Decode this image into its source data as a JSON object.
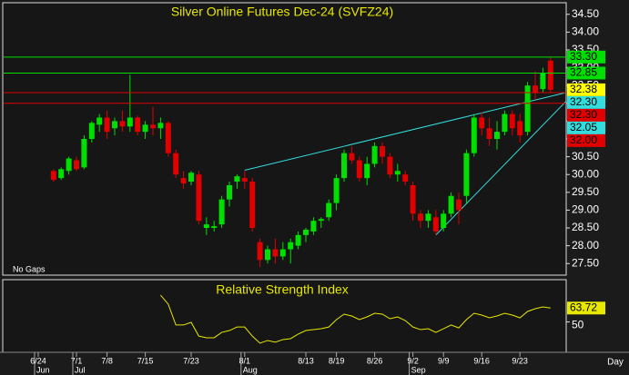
{
  "chart_data": [
    {
      "type": "candlestick",
      "title": "Silver Online Futures Dec-24 (SVFZ24)",
      "note": "No Gaps",
      "x_axis_unit": "Day",
      "categories": [
        "6/24",
        null,
        null,
        null,
        null,
        "7/1",
        null,
        null,
        null,
        "7/8",
        null,
        null,
        null,
        null,
        "7/15",
        null,
        null,
        null,
        null,
        null,
        "7/23",
        null,
        null,
        null,
        null,
        null,
        null,
        "8/1",
        null,
        null,
        null,
        null,
        null,
        null,
        null,
        "8/13",
        null,
        null,
        null,
        "8/19",
        null,
        null,
        null,
        null,
        "8/26",
        null,
        null,
        null,
        null,
        "9/2",
        null,
        null,
        null,
        "9/9",
        null,
        null,
        null,
        null,
        "9/16",
        null,
        null,
        null,
        null,
        "9/23",
        null,
        null,
        null,
        null
      ],
      "months": [
        "Jun",
        null,
        null,
        null,
        null,
        "Jul",
        null,
        null,
        null,
        null,
        null,
        null,
        null,
        null,
        null,
        null,
        null,
        null,
        null,
        null,
        null,
        null,
        null,
        null,
        null,
        null,
        null,
        "Aug",
        null,
        null,
        null,
        null,
        null,
        null,
        null,
        null,
        null,
        null,
        null,
        null,
        null,
        null,
        null,
        null,
        null,
        null,
        null,
        null,
        null,
        "Sep",
        null,
        null,
        null,
        null,
        null,
        null,
        null,
        null,
        null,
        null,
        null,
        null,
        null,
        null,
        null,
        null,
        null,
        null
      ],
      "open": [
        null,
        null,
        30.1,
        29.9,
        30.1,
        30.4,
        30.2,
        31.0,
        31.4,
        31.6,
        31.3,
        31.5,
        31.35,
        31.6,
        31.2,
        31.4,
        31.3,
        31.45,
        30.6,
        29.9,
        29.8,
        30.0,
        28.5,
        28.5,
        28.6,
        29.3,
        29.8,
        29.9,
        29.8,
        28.1,
        27.6,
        27.9,
        27.7,
        27.9,
        28.0,
        28.3,
        28.4,
        28.7,
        28.8,
        29.2,
        29.9,
        30.6,
        30.4,
        29.9,
        30.3,
        30.8,
        30.5,
        30.0,
        30.0,
        29.7,
        28.9,
        28.7,
        28.8,
        28.5,
        28.9,
        29.3,
        29.4,
        30.6,
        31.6,
        31.3,
        31.0,
        31.2,
        31.7,
        31.5,
        31.2,
        32.5,
        32.4,
        33.2
      ],
      "high": [
        null,
        null,
        30.15,
        30.2,
        30.5,
        30.5,
        31.1,
        31.5,
        31.7,
        31.8,
        31.6,
        31.8,
        32.8,
        31.65,
        31.5,
        31.9,
        31.6,
        31.5,
        30.7,
        30.1,
        30.1,
        30.1,
        28.8,
        28.7,
        29.4,
        29.8,
        30.0,
        30.1,
        29.9,
        28.2,
        28.0,
        28.2,
        28.1,
        28.2,
        28.4,
        28.5,
        28.8,
        28.8,
        29.3,
        30.0,
        30.7,
        30.8,
        30.5,
        30.5,
        30.9,
        30.9,
        30.6,
        30.3,
        30.1,
        29.8,
        29.0,
        29.0,
        29.0,
        29.0,
        29.5,
        29.5,
        30.7,
        31.7,
        31.75,
        31.6,
        31.5,
        31.8,
        31.8,
        31.7,
        32.6,
        32.9,
        33.0,
        33.3
      ],
      "low": [
        null,
        null,
        29.8,
        29.85,
        30.0,
        30.1,
        30.15,
        30.9,
        31.2,
        31.0,
        31.1,
        31.2,
        31.2,
        31.1,
        31.0,
        31.1,
        31.0,
        30.5,
        29.9,
        29.6,
        29.7,
        28.6,
        28.3,
        28.4,
        28.5,
        29.1,
        29.6,
        29.6,
        28.4,
        27.4,
        27.5,
        27.5,
        27.6,
        27.5,
        27.9,
        28.1,
        28.3,
        28.5,
        28.7,
        29.0,
        29.8,
        30.3,
        29.8,
        29.7,
        30.2,
        30.3,
        29.9,
        29.8,
        29.7,
        28.7,
        28.5,
        28.5,
        28.3,
        28.4,
        28.8,
        28.6,
        29.2,
        30.5,
        31.1,
        30.8,
        30.7,
        31.1,
        31.1,
        30.9,
        31.1,
        32.1,
        32.3,
        32.3
      ],
      "close": [
        null,
        null,
        29.85,
        30.15,
        30.45,
        30.15,
        31.0,
        31.45,
        31.6,
        31.2,
        31.5,
        31.35,
        31.6,
        31.2,
        31.4,
        31.3,
        31.45,
        30.6,
        30.0,
        29.75,
        30.05,
        28.7,
        28.6,
        28.55,
        29.3,
        29.7,
        29.95,
        29.8,
        28.5,
        27.6,
        27.9,
        27.7,
        27.9,
        28.1,
        28.3,
        28.45,
        28.7,
        28.75,
        29.2,
        29.9,
        30.6,
        30.4,
        29.9,
        30.3,
        30.8,
        30.5,
        30.0,
        30.1,
        29.8,
        28.9,
        28.7,
        28.9,
        28.4,
        28.9,
        29.4,
        29.0,
        30.6,
        31.6,
        31.3,
        31.0,
        31.2,
        31.7,
        31.3,
        31.1,
        32.5,
        32.3,
        32.85,
        32.38
      ],
      "up_color": "#00e000",
      "down_color": "#e00000",
      "ylim": [
        27.2,
        34.8
      ],
      "yticks": [
        {
          "value": 34.5,
          "label": "34.50"
        },
        {
          "value": 34.0,
          "label": "34.00"
        },
        {
          "value": 33.5,
          "label": "33.50"
        },
        {
          "value": 33.0,
          "label": "33.00"
        },
        {
          "value": 32.5,
          "label": "32.50"
        },
        {
          "value": 32.0,
          "label": "32.00"
        },
        {
          "value": 31.5,
          "label": "31.50"
        },
        {
          "value": 31.0,
          "label": "31.00"
        },
        {
          "value": 30.5,
          "label": "30.50"
        },
        {
          "value": 30.0,
          "label": "30.00"
        },
        {
          "value": 29.5,
          "label": "29.50"
        },
        {
          "value": 29.0,
          "label": "29.00"
        },
        {
          "value": 28.5,
          "label": "28.50"
        },
        {
          "value": 28.0,
          "label": "28.00"
        },
        {
          "value": 27.5,
          "label": "27.50"
        }
      ],
      "trendlines": [
        {
          "x": [
            27,
            69
          ],
          "values": [
            30.12,
            32.3
          ],
          "color": "#33dddd"
        },
        {
          "x": [
            52,
            69
          ],
          "values": [
            28.3,
            32.05
          ],
          "color": "#33dddd"
        }
      ],
      "levels": [
        {
          "value": 33.3,
          "label": "33.30",
          "color": "#00e000",
          "line": true
        },
        {
          "value": 32.85,
          "label": "32.85",
          "color": "#00e000",
          "line": true
        },
        {
          "value": 32.38,
          "label": "32.38",
          "color": "#ffff00",
          "line": false
        },
        {
          "value": 32.3,
          "label": "32.30",
          "color": "#33dddd",
          "line": false
        },
        {
          "value": 32.3,
          "label": "32.30",
          "color": "#e00000",
          "line": true
        },
        {
          "value": 32.05,
          "label": "32.05",
          "color": "#33dddd",
          "line": false
        },
        {
          "value": 32.0,
          "label": "32.00",
          "color": "#e00000",
          "line": true
        }
      ]
    },
    {
      "type": "line",
      "title": "Relative Strength Index",
      "color": "#e8e800",
      "values": [
        null,
        null,
        null,
        null,
        null,
        null,
        null,
        null,
        null,
        null,
        null,
        null,
        null,
        null,
        null,
        null,
        76.5,
        67.6,
        47,
        47,
        49.6,
        36,
        34.4,
        34.4,
        39.7,
        41.5,
        45,
        45,
        36,
        29,
        31.7,
        30,
        32.6,
        33.5,
        38,
        41.5,
        42.4,
        43.3,
        45,
        52.3,
        57.7,
        55.9,
        52.3,
        55,
        58.6,
        57.7,
        53.2,
        55,
        51.4,
        45,
        42.4,
        43.3,
        39.7,
        43.3,
        47,
        44.1,
        52.3,
        58.6,
        56.8,
        54.1,
        55.9,
        58.6,
        56.8,
        54.1,
        60.4,
        63.1,
        64.9,
        63.72
      ],
      "ylim": [
        20,
        90
      ],
      "yticks": [
        50
      ]
    }
  ]
}
